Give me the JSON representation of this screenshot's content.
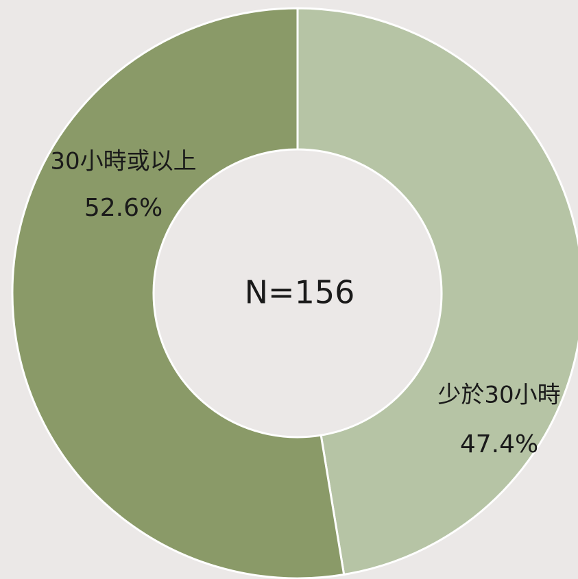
{
  "chart_data": {
    "type": "pie",
    "center_label": "N=156",
    "categories": [
      "少於30小時",
      "30小時或以上"
    ],
    "values": [
      47.4,
      52.6
    ],
    "value_labels": [
      "47.4%",
      "52.6%"
    ],
    "colors": [
      "#b6c4a5",
      "#8a9a68"
    ]
  }
}
